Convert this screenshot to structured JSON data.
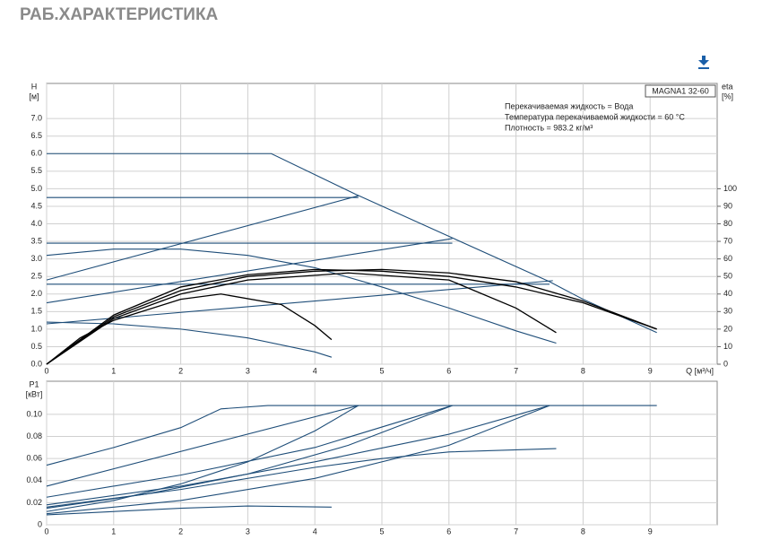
{
  "header": {
    "title": "РАБ.ХАРАКТЕРИСТИКА"
  },
  "chart_data": [
    {
      "type": "line",
      "annotation_title": "MAGNA1 32-60",
      "annotations": [
        "Перекачиваемая жидкость = Вода",
        "Температура перекачиваемой жидкости = 60 °C",
        "Плотность = 983.2 кг/м³"
      ],
      "ylabel": "H",
      "ylabel_unit": "[м]",
      "y2label": "eta",
      "y2label_unit": "[%]",
      "xlabel": "Q [м³/ч]",
      "xlim": [
        0,
        10
      ],
      "xticks": [
        0,
        1,
        2,
        3,
        4,
        5,
        6,
        7,
        8,
        9
      ],
      "ylim": [
        0,
        8
      ],
      "yticks": [
        {
          "value": 0,
          "label": "0.0"
        },
        0.5,
        {
          "value": 1,
          "label": "1.0"
        },
        1.5,
        {
          "value": 2,
          "label": "2.0"
        },
        2.5,
        {
          "value": 3,
          "label": "3.0"
        },
        3.5,
        {
          "value": 4,
          "label": "4.0"
        },
        4.5,
        {
          "value": 5,
          "label": "5.0"
        },
        5.5,
        {
          "value": 6,
          "label": "6.0"
        },
        6.5,
        {
          "value": 7,
          "label": "7.0"
        }
      ],
      "y2lim": [
        0,
        160
      ],
      "y2ticks": [
        0,
        10,
        20,
        30,
        40,
        50,
        60,
        70,
        80,
        90,
        100
      ],
      "grid": true,
      "series": [
        {
          "color": "#1f4e79",
          "x": [
            0,
            3.35,
            4.6,
            6.05,
            7.5,
            8,
            9.1
          ],
          "values": [
            6.0,
            6.0,
            4.85,
            3.6,
            2.35,
            1.85,
            0.9
          ]
        },
        {
          "color": "#1f4e79",
          "x": [
            0,
            4.65
          ],
          "values": [
            4.75,
            4.75
          ]
        },
        {
          "color": "#1f4e79",
          "x": [
            0,
            6.05
          ],
          "values": [
            3.45,
            3.45
          ]
        },
        {
          "color": "#1f4e79",
          "x": [
            0,
            7.5
          ],
          "values": [
            2.28,
            2.28
          ]
        },
        {
          "color": "#1f4e79",
          "x": [
            0,
            4.65
          ],
          "values": [
            2.4,
            4.8
          ]
        },
        {
          "color": "#1f4e79",
          "x": [
            0,
            6.05
          ],
          "values": [
            1.75,
            3.58
          ]
        },
        {
          "color": "#1f4e79",
          "x": [
            0,
            7.55
          ],
          "values": [
            1.15,
            2.38
          ]
        },
        {
          "color": "#1f4e79",
          "x": [
            0,
            1,
            2,
            3,
            4,
            5,
            6,
            7,
            7.6
          ],
          "values": [
            3.1,
            3.28,
            3.28,
            3.1,
            2.75,
            2.2,
            1.6,
            0.95,
            0.6
          ]
        },
        {
          "color": "#1f4e79",
          "x": [
            0,
            1,
            2,
            3,
            4,
            4.25
          ],
          "values": [
            1.2,
            1.15,
            1.0,
            0.75,
            0.35,
            0.2
          ]
        },
        {
          "color": "#000000",
          "axis": "y2",
          "x": [
            0,
            0.5,
            1,
            2,
            2.6,
            3.5,
            4,
            4.25
          ],
          "values": [
            0,
            15,
            25,
            37,
            40,
            34,
            22,
            14
          ]
        },
        {
          "color": "#000000",
          "axis": "y2",
          "x": [
            0,
            1,
            2,
            3,
            4.5,
            6,
            7,
            7.6
          ],
          "values": [
            0,
            26,
            40,
            48,
            52,
            48,
            32,
            18
          ]
        },
        {
          "color": "#000000",
          "axis": "y2",
          "x": [
            0,
            1,
            2,
            3,
            4,
            5,
            6,
            7,
            8,
            9.1
          ],
          "values": [
            0,
            27,
            42,
            50,
            53,
            54,
            52,
            47,
            36,
            20
          ]
        },
        {
          "color": "#000000",
          "axis": "y2",
          "x": [
            0,
            1,
            2,
            3,
            4,
            5,
            6,
            7,
            8,
            9.1
          ],
          "values": [
            0,
            28,
            44,
            51,
            54,
            53,
            50,
            44,
            35,
            20
          ]
        }
      ]
    },
    {
      "type": "line",
      "ylabel": "P1",
      "ylabel_unit": "[кВт]",
      "xlim": [
        0,
        10
      ],
      "xticks": [
        0,
        1,
        2,
        3,
        4,
        5,
        6,
        7,
        8,
        9
      ],
      "ylim": [
        0,
        0.13
      ],
      "yticks": [
        0,
        0.02,
        0.04,
        0.06,
        0.08,
        {
          "value": 0.1,
          "label": "0.10"
        }
      ],
      "grid": true,
      "series": [
        {
          "color": "#1f4e79",
          "x": [
            0,
            1,
            2,
            2.6,
            3.3,
            9.1
          ],
          "values": [
            0.054,
            0.07,
            0.088,
            0.105,
            0.108,
            0.108
          ]
        },
        {
          "color": "#1f4e79",
          "x": [
            0,
            4.65
          ],
          "values": [
            0.035,
            0.108
          ]
        },
        {
          "color": "#1f4e79",
          "x": [
            0,
            1,
            2,
            3,
            4,
            4.65
          ],
          "values": [
            0.012,
            0.022,
            0.037,
            0.057,
            0.085,
            0.108
          ]
        },
        {
          "color": "#1f4e79",
          "x": [
            0,
            2,
            4,
            6.05
          ],
          "values": [
            0.025,
            0.045,
            0.07,
            0.108
          ]
        },
        {
          "color": "#1f4e79",
          "x": [
            0,
            1.5,
            3,
            4.5,
            6.05
          ],
          "values": [
            0.015,
            0.028,
            0.046,
            0.072,
            0.108
          ]
        },
        {
          "color": "#1f4e79",
          "x": [
            0,
            2,
            4,
            6,
            7.5
          ],
          "values": [
            0.018,
            0.035,
            0.057,
            0.082,
            0.108
          ]
        },
        {
          "color": "#1f4e79",
          "x": [
            0,
            2,
            4,
            6,
            7.5
          ],
          "values": [
            0.01,
            0.022,
            0.042,
            0.072,
            0.108
          ]
        },
        {
          "color": "#1f4e79",
          "x": [
            0,
            2,
            4,
            5,
            6,
            7.6
          ],
          "values": [
            0.016,
            0.032,
            0.052,
            0.06,
            0.066,
            0.069
          ]
        },
        {
          "color": "#1f4e79",
          "x": [
            0,
            2,
            3,
            4.25
          ],
          "values": [
            0.009,
            0.015,
            0.017,
            0.016
          ]
        }
      ]
    }
  ]
}
